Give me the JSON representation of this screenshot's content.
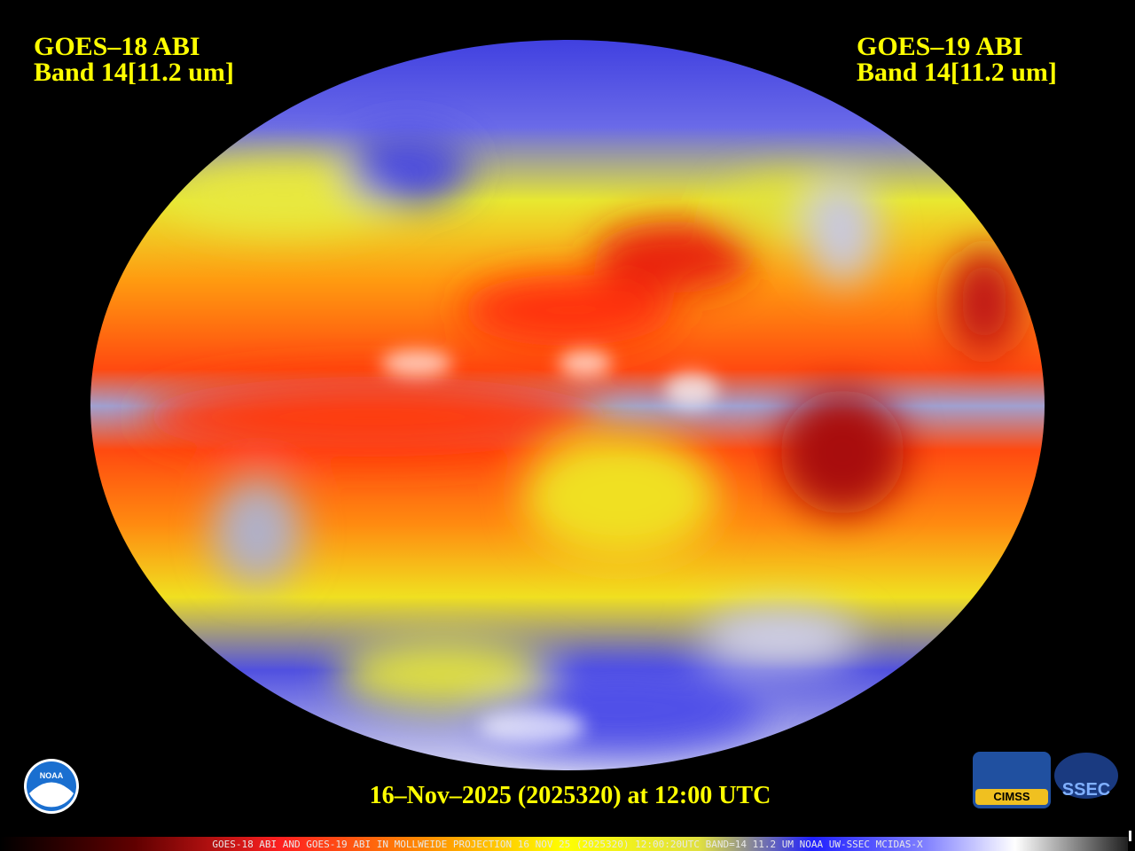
{
  "left_label": {
    "satellite": "GOES–18 ABI",
    "band": "Band 14[11.2 um]"
  },
  "right_label": {
    "satellite": "GOES–19 ABI",
    "band": "Band 14[11.2 um]"
  },
  "timestamp": "16–Nov–2025 (2025320) at 12:00 UTC",
  "footer": "GOES-18 ABI AND GOES-19 ABI IN MOLLWEIDE PROJECTION 16 NOV 25 (2025320) 12:00:20UTC BAND=14 11.2 UM NOAA UW-SSEC MCIDAS-X",
  "logos": {
    "noaa": "NOAA",
    "cimss": "CIMSS",
    "ssec": "SSEC"
  }
}
